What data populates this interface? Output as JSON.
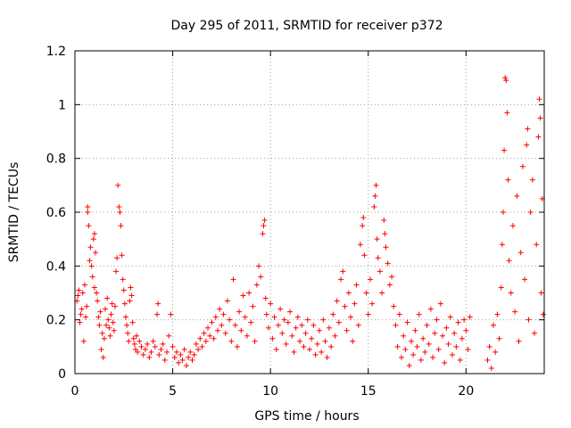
{
  "chart_data": {
    "type": "scatter",
    "title": "Day 295 of 2011, SRMTID for receiver p372",
    "xlabel": "GPS time / hours",
    "ylabel": "SRMTID / TECUs",
    "xlim": [
      0,
      24
    ],
    "ylim": [
      0,
      1.2
    ],
    "xticks": [
      0,
      5,
      10,
      15,
      20
    ],
    "xtick_labels": [
      "0",
      "5",
      "10",
      "15",
      "20"
    ],
    "yticks": [
      0,
      0.2,
      0.4,
      0.6,
      0.8,
      1,
      1.2
    ],
    "ytick_labels": [
      "0",
      "0.2",
      "0.4",
      "0.6",
      "0.8",
      "1",
      "1.2"
    ],
    "grid": true,
    "marker": "+",
    "series_color": "#ff0000",
    "series": [
      {
        "name": "SRMTID",
        "points": [
          [
            0.1,
            0.27
          ],
          [
            0.15,
            0.29
          ],
          [
            0.2,
            0.31
          ],
          [
            0.25,
            0.19
          ],
          [
            0.3,
            0.22
          ],
          [
            0.35,
            0.24
          ],
          [
            0.4,
            0.3
          ],
          [
            0.45,
            0.12
          ],
          [
            0.5,
            0.33
          ],
          [
            0.55,
            0.21
          ],
          [
            0.6,
            0.25
          ],
          [
            0.65,
            0.6
          ],
          [
            0.65,
            0.62
          ],
          [
            0.7,
            0.55
          ],
          [
            0.75,
            0.42
          ],
          [
            0.8,
            0.47
          ],
          [
            0.85,
            0.4
          ],
          [
            0.9,
            0.36
          ],
          [
            0.95,
            0.5
          ],
          [
            1.0,
            0.52
          ],
          [
            1.0,
            0.32
          ],
          [
            1.05,
            0.45
          ],
          [
            1.1,
            0.3
          ],
          [
            1.15,
            0.27
          ],
          [
            1.2,
            0.21
          ],
          [
            1.25,
            0.18
          ],
          [
            1.3,
            0.23
          ],
          [
            1.35,
            0.09
          ],
          [
            1.4,
            0.15
          ],
          [
            1.45,
            0.06
          ],
          [
            1.5,
            0.13
          ],
          [
            1.55,
            0.24
          ],
          [
            1.6,
            0.18
          ],
          [
            1.65,
            0.28
          ],
          [
            1.7,
            0.2
          ],
          [
            1.75,
            0.17
          ],
          [
            1.8,
            0.14
          ],
          [
            1.85,
            0.22
          ],
          [
            1.9,
            0.26
          ],
          [
            1.95,
            0.19
          ],
          [
            2.0,
            0.16
          ],
          [
            2.05,
            0.25
          ],
          [
            2.1,
            0.38
          ],
          [
            2.15,
            0.43
          ],
          [
            2.2,
            0.7
          ],
          [
            2.25,
            0.62
          ],
          [
            2.3,
            0.6
          ],
          [
            2.35,
            0.55
          ],
          [
            2.4,
            0.44
          ],
          [
            2.45,
            0.35
          ],
          [
            2.5,
            0.31
          ],
          [
            2.55,
            0.26
          ],
          [
            2.6,
            0.21
          ],
          [
            2.65,
            0.18
          ],
          [
            2.7,
            0.15
          ],
          [
            2.75,
            0.12
          ],
          [
            2.8,
            0.27
          ],
          [
            2.85,
            0.32
          ],
          [
            2.9,
            0.29
          ],
          [
            2.95,
            0.19
          ],
          [
            3.0,
            0.13
          ],
          [
            3.05,
            0.11
          ],
          [
            3.1,
            0.09
          ],
          [
            3.15,
            0.14
          ],
          [
            3.2,
            0.08
          ],
          [
            3.3,
            0.12
          ],
          [
            3.4,
            0.1
          ],
          [
            3.5,
            0.07
          ],
          [
            3.6,
            0.09
          ],
          [
            3.7,
            0.11
          ],
          [
            3.8,
            0.06
          ],
          [
            3.9,
            0.08
          ],
          [
            4.0,
            0.12
          ],
          [
            4.1,
            0.1
          ],
          [
            4.2,
            0.22
          ],
          [
            4.25,
            0.26
          ],
          [
            4.3,
            0.07
          ],
          [
            4.4,
            0.09
          ],
          [
            4.5,
            0.11
          ],
          [
            4.6,
            0.05
          ],
          [
            4.7,
            0.08
          ],
          [
            4.8,
            0.14
          ],
          [
            4.9,
            0.22
          ],
          [
            5.0,
            0.1
          ],
          [
            5.1,
            0.06
          ],
          [
            5.2,
            0.08
          ],
          [
            5.3,
            0.04
          ],
          [
            5.4,
            0.07
          ],
          [
            5.5,
            0.05
          ],
          [
            5.6,
            0.09
          ],
          [
            5.7,
            0.03
          ],
          [
            5.8,
            0.06
          ],
          [
            5.9,
            0.08
          ],
          [
            6.0,
            0.05
          ],
          [
            6.1,
            0.07
          ],
          [
            6.2,
            0.11
          ],
          [
            6.3,
            0.09
          ],
          [
            6.4,
            0.13
          ],
          [
            6.5,
            0.1
          ],
          [
            6.6,
            0.15
          ],
          [
            6.7,
            0.12
          ],
          [
            6.8,
            0.17
          ],
          [
            6.9,
            0.14
          ],
          [
            7.0,
            0.19
          ],
          [
            7.1,
            0.13
          ],
          [
            7.2,
            0.21
          ],
          [
            7.3,
            0.16
          ],
          [
            7.4,
            0.24
          ],
          [
            7.5,
            0.18
          ],
          [
            7.6,
            0.22
          ],
          [
            7.7,
            0.15
          ],
          [
            7.8,
            0.27
          ],
          [
            7.9,
            0.2
          ],
          [
            8.0,
            0.12
          ],
          [
            8.1,
            0.35
          ],
          [
            8.2,
            0.18
          ],
          [
            8.3,
            0.1
          ],
          [
            8.4,
            0.23
          ],
          [
            8.5,
            0.16
          ],
          [
            8.6,
            0.29
          ],
          [
            8.7,
            0.21
          ],
          [
            8.8,
            0.14
          ],
          [
            8.9,
            0.3
          ],
          [
            9.0,
            0.19
          ],
          [
            9.1,
            0.25
          ],
          [
            9.2,
            0.12
          ],
          [
            9.3,
            0.33
          ],
          [
            9.4,
            0.4
          ],
          [
            9.5,
            0.36
          ],
          [
            9.6,
            0.52
          ],
          [
            9.65,
            0.55
          ],
          [
            9.7,
            0.57
          ],
          [
            9.75,
            0.28
          ],
          [
            9.8,
            0.22
          ],
          [
            9.9,
            0.17
          ],
          [
            10.0,
            0.26
          ],
          [
            10.1,
            0.13
          ],
          [
            10.2,
            0.21
          ],
          [
            10.3,
            0.09
          ],
          [
            10.4,
            0.18
          ],
          [
            10.5,
            0.24
          ],
          [
            10.6,
            0.15
          ],
          [
            10.7,
            0.2
          ],
          [
            10.8,
            0.11
          ],
          [
            10.9,
            0.19
          ],
          [
            11.0,
            0.23
          ],
          [
            11.1,
            0.14
          ],
          [
            11.2,
            0.08
          ],
          [
            11.3,
            0.17
          ],
          [
            11.4,
            0.21
          ],
          [
            11.5,
            0.12
          ],
          [
            11.6,
            0.18
          ],
          [
            11.7,
            0.1
          ],
          [
            11.8,
            0.15
          ],
          [
            11.9,
            0.2
          ],
          [
            12.0,
            0.09
          ],
          [
            12.1,
            0.13
          ],
          [
            12.2,
            0.18
          ],
          [
            12.3,
            0.07
          ],
          [
            12.4,
            0.11
          ],
          [
            12.5,
            0.16
          ],
          [
            12.6,
            0.08
          ],
          [
            12.7,
            0.2
          ],
          [
            12.8,
            0.12
          ],
          [
            12.9,
            0.06
          ],
          [
            13.0,
            0.17
          ],
          [
            13.1,
            0.1
          ],
          [
            13.2,
            0.22
          ],
          [
            13.3,
            0.14
          ],
          [
            13.4,
            0.27
          ],
          [
            13.5,
            0.19
          ],
          [
            13.6,
            0.35
          ],
          [
            13.7,
            0.38
          ],
          [
            13.8,
            0.25
          ],
          [
            13.9,
            0.16
          ],
          [
            14.0,
            0.3
          ],
          [
            14.1,
            0.21
          ],
          [
            14.2,
            0.12
          ],
          [
            14.3,
            0.26
          ],
          [
            14.4,
            0.33
          ],
          [
            14.5,
            0.18
          ],
          [
            14.6,
            0.48
          ],
          [
            14.7,
            0.55
          ],
          [
            14.75,
            0.58
          ],
          [
            14.8,
            0.44
          ],
          [
            14.9,
            0.3
          ],
          [
            15.0,
            0.22
          ],
          [
            15.1,
            0.35
          ],
          [
            15.2,
            0.26
          ],
          [
            15.3,
            0.62
          ],
          [
            15.35,
            0.66
          ],
          [
            15.4,
            0.7
          ],
          [
            15.45,
            0.5
          ],
          [
            15.5,
            0.43
          ],
          [
            15.6,
            0.38
          ],
          [
            15.7,
            0.3
          ],
          [
            15.8,
            0.57
          ],
          [
            15.85,
            0.52
          ],
          [
            15.9,
            0.47
          ],
          [
            16.0,
            0.41
          ],
          [
            16.1,
            0.33
          ],
          [
            16.2,
            0.36
          ],
          [
            16.3,
            0.25
          ],
          [
            16.4,
            0.18
          ],
          [
            16.5,
            0.1
          ],
          [
            16.6,
            0.22
          ],
          [
            16.7,
            0.06
          ],
          [
            16.8,
            0.14
          ],
          [
            16.9,
            0.09
          ],
          [
            17.0,
            0.19
          ],
          [
            17.1,
            0.03
          ],
          [
            17.2,
            0.12
          ],
          [
            17.3,
            0.07
          ],
          [
            17.4,
            0.16
          ],
          [
            17.5,
            0.1
          ],
          [
            17.6,
            0.22
          ],
          [
            17.7,
            0.05
          ],
          [
            17.8,
            0.13
          ],
          [
            17.9,
            0.08
          ],
          [
            18.0,
            0.18
          ],
          [
            18.1,
            0.11
          ],
          [
            18.2,
            0.24
          ],
          [
            18.3,
            0.06
          ],
          [
            18.4,
            0.15
          ],
          [
            18.5,
            0.2
          ],
          [
            18.6,
            0.09
          ],
          [
            18.7,
            0.26
          ],
          [
            18.8,
            0.14
          ],
          [
            18.9,
            0.04
          ],
          [
            19.0,
            0.17
          ],
          [
            19.1,
            0.11
          ],
          [
            19.2,
            0.21
          ],
          [
            19.3,
            0.07
          ],
          [
            19.4,
            0.15
          ],
          [
            19.5,
            0.1
          ],
          [
            19.6,
            0.19
          ],
          [
            19.7,
            0.05
          ],
          [
            19.8,
            0.13
          ],
          [
            19.9,
            0.2
          ],
          [
            20.0,
            0.16
          ],
          [
            20.1,
            0.09
          ],
          [
            20.2,
            0.21
          ],
          [
            21.1,
            0.05
          ],
          [
            21.2,
            0.1
          ],
          [
            21.3,
            0.02
          ],
          [
            21.4,
            0.18
          ],
          [
            21.5,
            0.08
          ],
          [
            21.6,
            0.22
          ],
          [
            21.7,
            0.13
          ],
          [
            21.8,
            0.32
          ],
          [
            21.85,
            0.48
          ],
          [
            21.9,
            0.6
          ],
          [
            21.95,
            0.83
          ],
          [
            22.0,
            1.1
          ],
          [
            22.05,
            1.09
          ],
          [
            22.1,
            0.97
          ],
          [
            22.15,
            0.72
          ],
          [
            22.2,
            0.42
          ],
          [
            22.3,
            0.3
          ],
          [
            22.4,
            0.55
          ],
          [
            22.5,
            0.23
          ],
          [
            22.6,
            0.66
          ],
          [
            22.7,
            0.12
          ],
          [
            22.8,
            0.45
          ],
          [
            22.9,
            0.77
          ],
          [
            23.0,
            0.35
          ],
          [
            23.1,
            0.85
          ],
          [
            23.15,
            0.91
          ],
          [
            23.2,
            0.2
          ],
          [
            23.3,
            0.6
          ],
          [
            23.4,
            0.72
          ],
          [
            23.5,
            0.15
          ],
          [
            23.6,
            0.48
          ],
          [
            23.7,
            0.88
          ],
          [
            23.75,
            1.02
          ],
          [
            23.8,
            0.95
          ],
          [
            23.85,
            0.3
          ],
          [
            23.9,
            0.65
          ],
          [
            23.95,
            0.22
          ]
        ]
      }
    ]
  }
}
